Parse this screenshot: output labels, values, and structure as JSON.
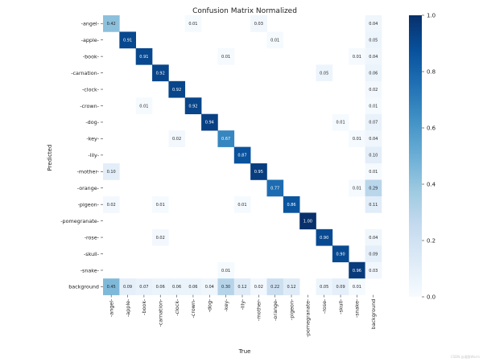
{
  "chart_data": {
    "type": "heatmap",
    "title": "Confusion Matrix Normalized",
    "xlabel": "True",
    "ylabel": "Predicted",
    "colormap": "Blues",
    "colors": {
      "low": "#f7fbff",
      "high": "#08306b"
    },
    "x_labels": [
      "-angel-",
      "-apple-",
      "-book-",
      "-carnation-",
      "-clock-",
      "-crown-",
      "-dog-",
      "-key-",
      "-lily-",
      "-mother-",
      "-orange-",
      "-pigeon-",
      "-pomegranate-",
      "-rose-",
      "-skull-",
      "-snake-",
      "background"
    ],
    "y_labels": [
      "-angel-",
      "-apple-",
      "-book-",
      "-carnation-",
      "-clock-",
      "-crown-",
      "-dog-",
      "-key-",
      "-lily-",
      "-mother-",
      "-orange-",
      "-pigeon-",
      "-pomegranate-",
      "-rose-",
      "-skull-",
      "-snake-",
      "background"
    ],
    "values": [
      [
        0.42,
        null,
        null,
        null,
        null,
        0.01,
        null,
        null,
        null,
        0.03,
        null,
        null,
        null,
        null,
        null,
        null,
        0.04
      ],
      [
        null,
        0.91,
        null,
        null,
        null,
        null,
        null,
        null,
        null,
        null,
        0.01,
        null,
        null,
        null,
        null,
        null,
        0.05
      ],
      [
        null,
        null,
        0.91,
        null,
        null,
        null,
        null,
        0.01,
        null,
        null,
        null,
        null,
        null,
        null,
        null,
        0.01,
        0.04
      ],
      [
        null,
        null,
        null,
        0.92,
        null,
        null,
        null,
        null,
        null,
        null,
        null,
        null,
        null,
        0.05,
        null,
        null,
        0.06
      ],
      [
        null,
        null,
        null,
        null,
        0.92,
        null,
        null,
        null,
        null,
        null,
        null,
        null,
        null,
        null,
        null,
        null,
        0.02
      ],
      [
        null,
        null,
        0.01,
        null,
        null,
        0.92,
        null,
        null,
        null,
        null,
        null,
        null,
        null,
        null,
        null,
        null,
        0.01
      ],
      [
        null,
        null,
        null,
        null,
        null,
        null,
        0.94,
        null,
        null,
        null,
        null,
        null,
        null,
        null,
        0.01,
        null,
        0.07
      ],
      [
        null,
        null,
        null,
        null,
        0.02,
        null,
        null,
        0.67,
        null,
        null,
        null,
        null,
        null,
        null,
        null,
        0.01,
        0.04
      ],
      [
        null,
        null,
        null,
        null,
        null,
        null,
        null,
        null,
        0.87,
        null,
        null,
        null,
        null,
        null,
        null,
        null,
        0.1
      ],
      [
        0.1,
        null,
        null,
        null,
        null,
        null,
        null,
        null,
        null,
        0.95,
        null,
        null,
        null,
        null,
        null,
        null,
        0.01
      ],
      [
        null,
        null,
        null,
        null,
        null,
        null,
        null,
        null,
        null,
        null,
        0.77,
        null,
        null,
        null,
        null,
        0.01,
        0.29
      ],
      [
        0.02,
        null,
        null,
        0.01,
        null,
        null,
        null,
        null,
        0.01,
        null,
        null,
        0.86,
        null,
        null,
        null,
        null,
        0.11
      ],
      [
        null,
        null,
        null,
        null,
        null,
        null,
        null,
        null,
        null,
        null,
        null,
        null,
        1.0,
        null,
        null,
        null,
        null
      ],
      [
        null,
        null,
        null,
        0.02,
        null,
        null,
        null,
        null,
        null,
        null,
        null,
        null,
        null,
        0.9,
        null,
        null,
        0.04
      ],
      [
        null,
        null,
        null,
        null,
        null,
        null,
        null,
        null,
        null,
        null,
        null,
        null,
        null,
        null,
        0.9,
        null,
        0.09
      ],
      [
        null,
        null,
        null,
        null,
        null,
        null,
        null,
        0.01,
        null,
        null,
        null,
        null,
        null,
        null,
        null,
        0.96,
        0.03
      ],
      [
        0.45,
        0.09,
        0.07,
        0.06,
        0.06,
        0.06,
        0.04,
        0.3,
        0.12,
        0.02,
        0.22,
        0.12,
        null,
        0.05,
        0.09,
        0.01,
        null
      ]
    ],
    "value_range": [
      0,
      1
    ],
    "colorbar_ticks": [
      "0.0",
      "0.2",
      "0.4",
      "0.6",
      "0.8",
      "1.0"
    ]
  },
  "watermark": "CSDN @道路Warm"
}
